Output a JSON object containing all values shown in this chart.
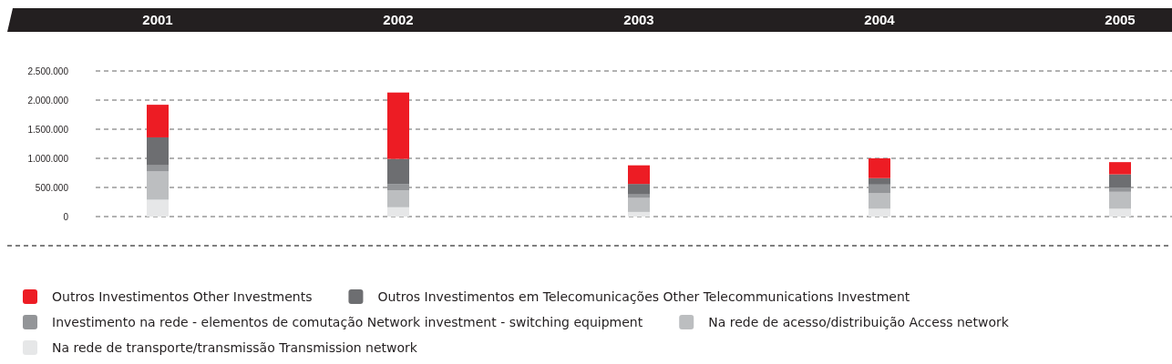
{
  "chart_data": {
    "type": "bar",
    "stacked": true,
    "categories": [
      "2001",
      "2002",
      "2003",
      "2004",
      "2005"
    ],
    "series": [
      {
        "name": "Na rede de transporte/transmissão Transmission network",
        "color": "#e6e7e8",
        "values": [
          290000,
          160000,
          80000,
          135000,
          135000
        ]
      },
      {
        "name": "Na rede de acesso/distribuição Access network",
        "color": "#bcbec0",
        "values": [
          485000,
          290000,
          240000,
          265000,
          290000
        ]
      },
      {
        "name": "Investimento na rede - elementos de comutação Network investment - switching equipment",
        "color": "#939598",
        "values": [
          105000,
          110000,
          60000,
          150000,
          75000
        ]
      },
      {
        "name": "Outros Investimentos em Telecomunicações Other Telecommunications Investment",
        "color": "#6d6e71",
        "values": [
          480000,
          430000,
          180000,
          110000,
          225000
        ]
      },
      {
        "name": "Outros Investimentos Other Investments",
        "color": "#ed1c24",
        "values": [
          560000,
          1140000,
          320000,
          340000,
          210000
        ]
      }
    ],
    "ylim": [
      0,
      2500000
    ],
    "yticks": [
      {
        "value": 0,
        "label": "0"
      },
      {
        "value": 500000,
        "label": "500.000"
      },
      {
        "value": 1000000,
        "label": "1.000.000"
      },
      {
        "value": 1500000,
        "label": "1.500.000"
      },
      {
        "value": 2000000,
        "label": "2.000.000"
      },
      {
        "value": 2500000,
        "label": "2.500.000"
      }
    ],
    "grid": "y",
    "legend": "bottom"
  }
}
